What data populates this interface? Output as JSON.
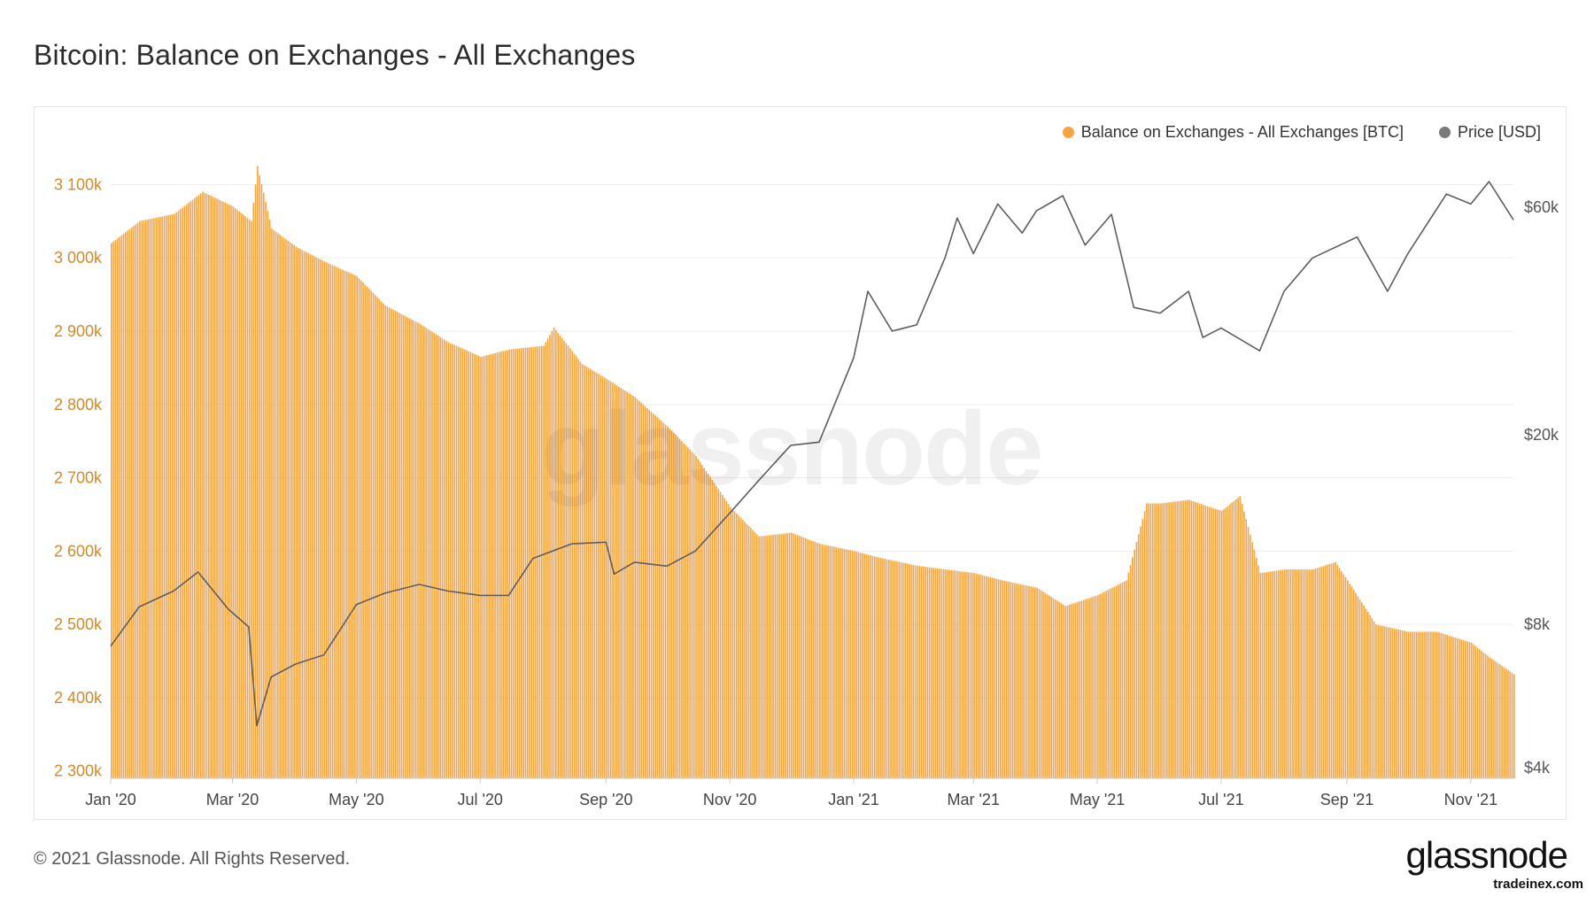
{
  "title": "Bitcoin: Balance on Exchanges - All Exchanges",
  "footer": "© 2021 Glassnode. All Rights Reserved.",
  "logo_text": "glassnode",
  "watermark_text": "glassnode",
  "site_text": "tradeinex.com",
  "legend": [
    {
      "label": "Balance on Exchanges - All Exchanges [BTC]",
      "color": "#f7a541"
    },
    {
      "label": "Price [USD]",
      "color": "#7a7a7a"
    }
  ],
  "chart_data": {
    "type": "bar",
    "title": "Bitcoin: Balance on Exchanges - All Exchanges",
    "x_range": [
      "2020-01-01",
      "2021-11-22"
    ],
    "x_tick_labels": [
      "Jan '20",
      "Mar '20",
      "May '20",
      "Jul '20",
      "Sep '20",
      "Nov '20",
      "Jan '21",
      "Mar '21",
      "May '21",
      "Jul '21",
      "Sep '21",
      "Nov '21"
    ],
    "y_left": {
      "tick_labels": [
        "3 100k",
        "3 000k",
        "2 900k",
        "2 800k",
        "2 700k",
        "2 600k",
        "2 500k",
        "2 400k",
        "2 300k"
      ],
      "range": [
        2290000,
        3150000
      ]
    },
    "y_right": {
      "scale": "log",
      "tick_labels": [
        "$60k",
        "$20k",
        "$8k",
        "$4k"
      ],
      "range": [
        3800,
        80000
      ]
    },
    "grid": true,
    "legend_position": "top-right",
    "series": [
      {
        "name": "Balance on Exchanges - All Exchanges [BTC]",
        "type": "bar",
        "axis": "left",
        "color": "#f7a541",
        "points": [
          [
            "2020-01-01",
            3020000
          ],
          [
            "2020-01-15",
            3050000
          ],
          [
            "2020-02-01",
            3060000
          ],
          [
            "2020-02-15",
            3090000
          ],
          [
            "2020-03-01",
            3070000
          ],
          [
            "2020-03-10",
            3050000
          ],
          [
            "2020-03-13",
            3125000
          ],
          [
            "2020-03-20",
            3040000
          ],
          [
            "2020-04-01",
            3015000
          ],
          [
            "2020-04-15",
            2995000
          ],
          [
            "2020-05-01",
            2975000
          ],
          [
            "2020-05-15",
            2935000
          ],
          [
            "2020-06-01",
            2910000
          ],
          [
            "2020-06-15",
            2885000
          ],
          [
            "2020-07-01",
            2865000
          ],
          [
            "2020-07-15",
            2875000
          ],
          [
            "2020-08-01",
            2880000
          ],
          [
            "2020-08-06",
            2905000
          ],
          [
            "2020-08-20",
            2855000
          ],
          [
            "2020-09-01",
            2835000
          ],
          [
            "2020-09-15",
            2810000
          ],
          [
            "2020-10-01",
            2770000
          ],
          [
            "2020-10-15",
            2730000
          ],
          [
            "2020-11-01",
            2660000
          ],
          [
            "2020-11-15",
            2620000
          ],
          [
            "2020-12-01",
            2625000
          ],
          [
            "2020-12-15",
            2610000
          ],
          [
            "2021-01-01",
            2600000
          ],
          [
            "2021-01-15",
            2590000
          ],
          [
            "2021-02-01",
            2580000
          ],
          [
            "2021-02-15",
            2575000
          ],
          [
            "2021-03-01",
            2570000
          ],
          [
            "2021-03-15",
            2560000
          ],
          [
            "2021-04-01",
            2550000
          ],
          [
            "2021-04-15",
            2525000
          ],
          [
            "2021-05-01",
            2540000
          ],
          [
            "2021-05-15",
            2560000
          ],
          [
            "2021-05-25",
            2665000
          ],
          [
            "2021-06-01",
            2665000
          ],
          [
            "2021-06-15",
            2670000
          ],
          [
            "2021-06-25",
            2660000
          ],
          [
            "2021-07-01",
            2655000
          ],
          [
            "2021-07-10",
            2675000
          ],
          [
            "2021-07-20",
            2570000
          ],
          [
            "2021-08-01",
            2575000
          ],
          [
            "2021-08-15",
            2575000
          ],
          [
            "2021-08-26",
            2585000
          ],
          [
            "2021-09-01",
            2560000
          ],
          [
            "2021-09-15",
            2500000
          ],
          [
            "2021-10-01",
            2490000
          ],
          [
            "2021-10-15",
            2490000
          ],
          [
            "2021-11-01",
            2475000
          ],
          [
            "2021-11-10",
            2455000
          ],
          [
            "2021-11-22",
            2432000
          ]
        ]
      },
      {
        "name": "Price [USD]",
        "type": "line",
        "axis": "right",
        "color": "#7a7a7a",
        "points": [
          [
            "2020-01-01",
            7200
          ],
          [
            "2020-01-15",
            8700
          ],
          [
            "2020-02-01",
            9400
          ],
          [
            "2020-02-13",
            10300
          ],
          [
            "2020-02-28",
            8600
          ],
          [
            "2020-03-09",
            7900
          ],
          [
            "2020-03-13",
            4900
          ],
          [
            "2020-03-20",
            6200
          ],
          [
            "2020-04-01",
            6600
          ],
          [
            "2020-04-15",
            6900
          ],
          [
            "2020-05-01",
            8800
          ],
          [
            "2020-05-15",
            9300
          ],
          [
            "2020-06-01",
            9700
          ],
          [
            "2020-06-15",
            9400
          ],
          [
            "2020-07-01",
            9200
          ],
          [
            "2020-07-15",
            9200
          ],
          [
            "2020-07-27",
            11000
          ],
          [
            "2020-08-15",
            11800
          ],
          [
            "2020-09-01",
            11900
          ],
          [
            "2020-09-05",
            10200
          ],
          [
            "2020-09-15",
            10800
          ],
          [
            "2020-10-01",
            10600
          ],
          [
            "2020-10-15",
            11400
          ],
          [
            "2020-11-01",
            13700
          ],
          [
            "2020-11-15",
            16000
          ],
          [
            "2020-12-01",
            19000
          ],
          [
            "2020-12-15",
            19300
          ],
          [
            "2021-01-01",
            29000
          ],
          [
            "2021-01-08",
            40000
          ],
          [
            "2021-01-20",
            33000
          ],
          [
            "2021-02-01",
            34000
          ],
          [
            "2021-02-15",
            47000
          ],
          [
            "2021-02-21",
            57000
          ],
          [
            "2021-03-01",
            48000
          ],
          [
            "2021-03-13",
            61000
          ],
          [
            "2021-03-25",
            53000
          ],
          [
            "2021-04-01",
            59000
          ],
          [
            "2021-04-14",
            63500
          ],
          [
            "2021-04-25",
            50000
          ],
          [
            "2021-05-08",
            58000
          ],
          [
            "2021-05-19",
            37000
          ],
          [
            "2021-06-01",
            36000
          ],
          [
            "2021-06-15",
            40000
          ],
          [
            "2021-06-22",
            32000
          ],
          [
            "2021-07-01",
            33500
          ],
          [
            "2021-07-20",
            30000
          ],
          [
            "2021-08-01",
            40000
          ],
          [
            "2021-08-15",
            47000
          ],
          [
            "2021-09-06",
            52000
          ],
          [
            "2021-09-21",
            40000
          ],
          [
            "2021-10-01",
            48000
          ],
          [
            "2021-10-20",
            64000
          ],
          [
            "2021-11-01",
            61000
          ],
          [
            "2021-11-10",
            68000
          ],
          [
            "2021-11-22",
            56500
          ]
        ]
      }
    ]
  }
}
